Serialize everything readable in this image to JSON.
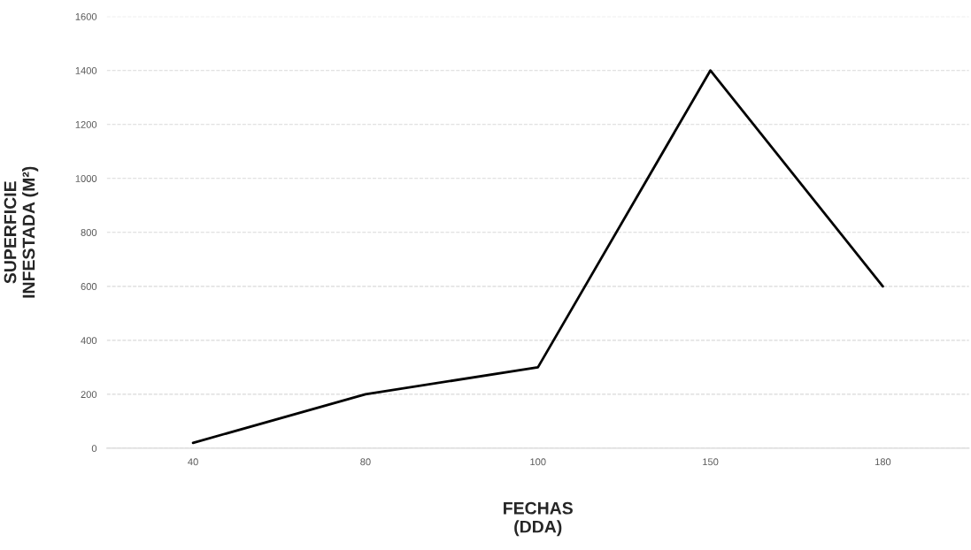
{
  "chart_data": {
    "type": "line",
    "xlabel": "FECHAS\n(DDA)",
    "ylabel": "SUPERFICIE\nINFESTADA (M²)",
    "categories": [
      "40",
      "80",
      "100",
      "150",
      "180"
    ],
    "series": [
      {
        "color": "#000000",
        "values": [
          20,
          200,
          300,
          1400,
          600
        ]
      }
    ],
    "ylim": [
      0,
      1600
    ],
    "yticks": [
      0,
      200,
      400,
      600,
      800,
      1000,
      1200,
      1400,
      1600
    ],
    "grid": "y",
    "marker": "none",
    "line_style": "solid"
  }
}
